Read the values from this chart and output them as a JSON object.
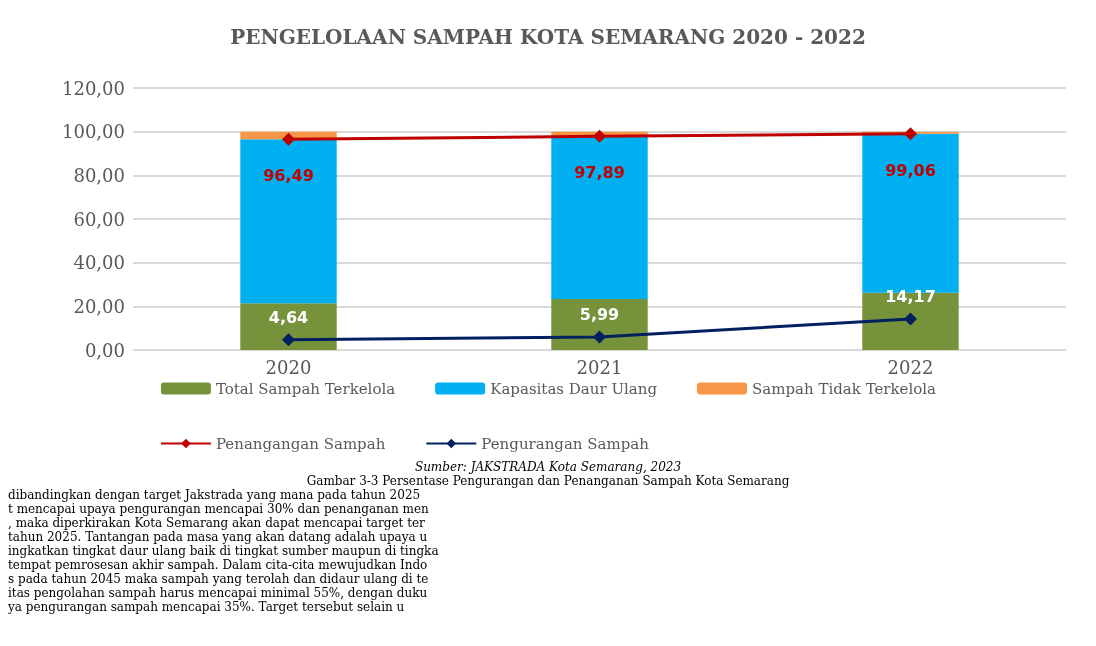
{
  "chart_data": {
    "type": "bar",
    "title": "PENGELOLAAN SAMPAH KOTA SEMARANG 2020 - 2022",
    "categories": [
      "2020",
      "2021",
      "2022"
    ],
    "stacked": true,
    "series": [
      {
        "name": "Total Sampah Terkelola",
        "color": "#76933c",
        "values": [
          21.4,
          23.4,
          26.2
        ]
      },
      {
        "name": "Kapasitas Daur Ulang",
        "color": "#00b0f0",
        "values": [
          75.1,
          74.5,
          72.9
        ]
      },
      {
        "name": "Sampah Tidak Terkelola",
        "color": "#f79646",
        "values": [
          3.5,
          2.1,
          0.9
        ]
      },
      {
        "name": "Penangangan Sampah",
        "type": "line",
        "color": "#c00000",
        "values": [
          96.49,
          97.89,
          99.06
        ],
        "value_labels": [
          "96,49",
          "97,89",
          "99,06"
        ],
        "marker": "diamond"
      },
      {
        "name": "Pengurangan Sampah",
        "type": "line",
        "color": "#002060",
        "values": [
          4.64,
          5.99,
          14.17
        ],
        "value_labels": [
          "4,64",
          "5,99",
          "14,17"
        ],
        "marker": "diamond"
      }
    ],
    "ylim": [
      0,
      120
    ],
    "yticks": [
      {
        "value": 0,
        "label": "0,00"
      },
      {
        "value": 20,
        "label": "20,00"
      },
      {
        "value": 40,
        "label": "40,00"
      },
      {
        "value": 60,
        "label": "60,00"
      },
      {
        "value": 80,
        "label": "80,00"
      },
      {
        "value": 100,
        "label": "100,00"
      },
      {
        "value": 120,
        "label": "120,00"
      }
    ],
    "grid": "y",
    "legend": "bottom",
    "annotations": [
      "Sumber: JAKSTRADA Kota Semarang, 2023",
      "Gambar 3-3 Persentase Pengurangan dan Penanganan Sampah Kota Semarang",
      "dibandingkan dengan target Jakstrada yang mana pada tahun 2025",
      "t mencapai upaya pengurangan mencapai 30% dan penanganan men",
      ", maka diperkirakan Kota Semarang akan dapat mencapai target ter",
      "tahun 2025. Tantangan pada masa yang akan datang adalah upaya u",
      "ingkatkan tingkat daur ulang baik di tingkat sumber maupun di tingka",
      "tempat pemrosesan akhir sampah. Dalam cita-cita mewujudkan Indo",
      "s pada tahun 2045 maka sampah yang terolah dan didaur ulang di te",
      "itas pengolahan sampah harus mencapai minimal 55%, dengan duku",
      "ya pengurangan sampah mencapai 35%. Target tersebut selain u"
    ]
  }
}
